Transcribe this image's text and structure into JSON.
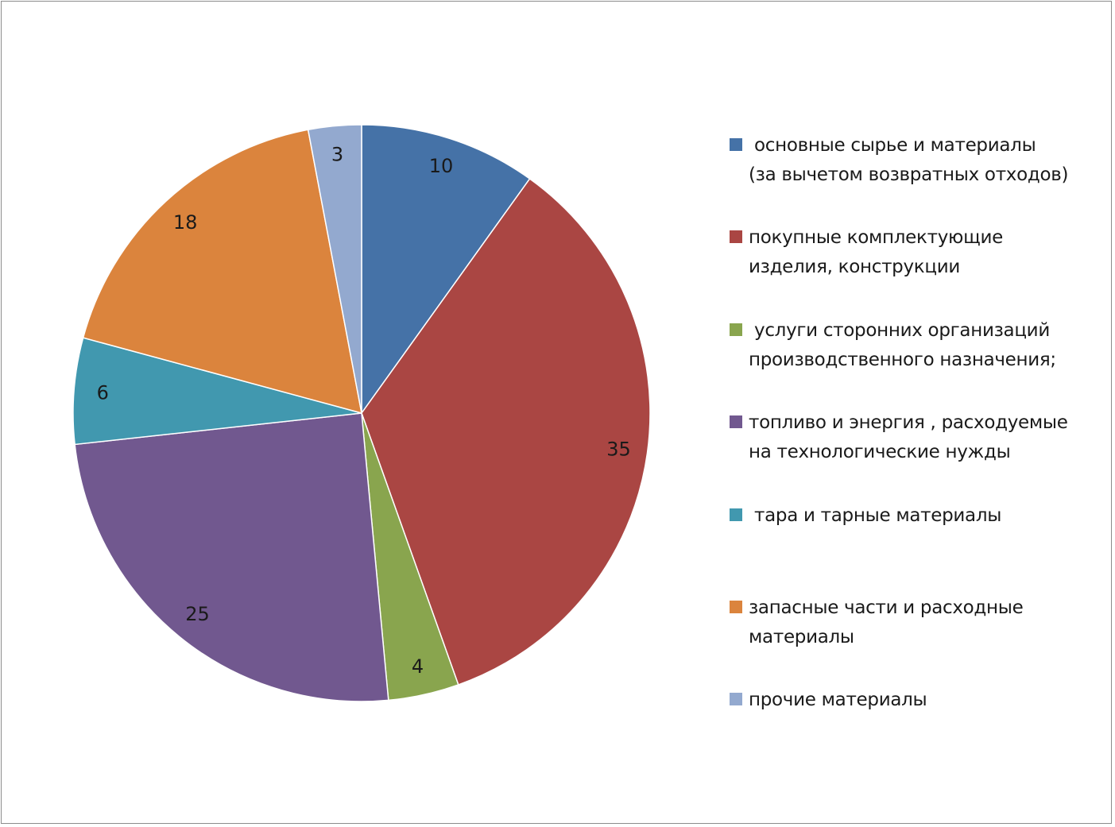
{
  "chart_data": {
    "type": "pie",
    "title": "",
    "start_angle": "top, clockwise",
    "legend_position": "right",
    "slices": [
      {
        "label": " основные сырье и материалы\n(за вычетом возвратных отходов)",
        "value": 10,
        "color": "#4572A7"
      },
      {
        "label": "покупные комплектующие\nизделия, конструкции",
        "value": 35,
        "color": "#AA4643"
      },
      {
        "label": " услуги сторонних организаций\nпроизводственного назначения;",
        "value": 4,
        "color": "#89A54E"
      },
      {
        "label": "топливо и энергия , расходуемые\nна технологические нужды",
        "value": 25,
        "color": "#71588F"
      },
      {
        "label": " тара и тарные материалы",
        "value": 6,
        "color": "#4198AF"
      },
      {
        "label": "запасные части и расходные\nматериалы",
        "value": 18,
        "color": "#DB843D"
      },
      {
        "label": "прочие материалы",
        "value": 3,
        "color": "#93A9CF"
      }
    ]
  }
}
